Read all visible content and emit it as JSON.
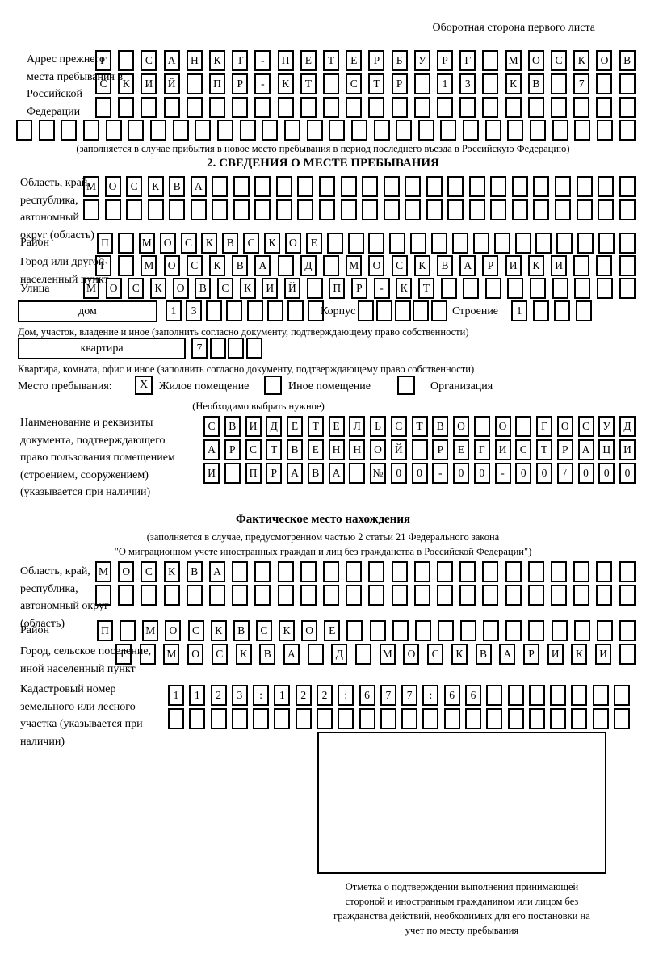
{
  "header": {
    "title": "Оборотная сторона первого листа"
  },
  "prev_address": {
    "label": "Адрес прежнего места пребывания в Российской Федерации",
    "row1": {
      "text": "Г САНКТ-ПЕТЕРБУРГ МОСКОВ",
      "count": 24
    },
    "row2": {
      "text": "СКИЙ ПР-КТ СТР 13 КВ 7",
      "count": 24
    },
    "row3": {
      "text": "",
      "count": 24
    },
    "row4": {
      "text": "",
      "count": 28
    },
    "note": "(заполняется в случае прибытия в новое место пребывания в период последнего въезда в Российскую Федерацию)"
  },
  "section2": {
    "title": "2. СВЕДЕНИЯ О МЕСТЕ ПРЕБЫВАНИЯ",
    "oblast": {
      "label": "Область, край, республика, автономный округ (область)",
      "row1": {
        "text": "МОСКВА",
        "count": 26
      },
      "row2": {
        "text": "",
        "count": 26
      }
    },
    "rayon": {
      "label": "Район",
      "row": {
        "text": "П МОСКВСКОЕ",
        "count": 26
      }
    },
    "gorod": {
      "label": "Город или другой населенный пункт",
      "row": {
        "text": "Г МОСКВА Д МОСКВАРИКИ",
        "count": 24
      }
    },
    "ulitsa": {
      "label": "Улица",
      "row": {
        "text": "МОСКОВСКИЙ ПР-КТ",
        "count": 25
      }
    },
    "dom": {
      "box_label": "дом",
      "cells": {
        "text": "13",
        "count": 8
      },
      "korpus_label": "Корпус",
      "korpus_cells": {
        "text": "",
        "count": 5
      },
      "stroenie_label": "Строение",
      "stroenie_cells": {
        "text": "1",
        "count": 4
      },
      "note": "Дом, участок, владение и иное (заполнить согласно документу, подтверждающему право собственности)"
    },
    "kvartira": {
      "box_label": "квартира",
      "cells": {
        "text": "7",
        "count": 4
      },
      "note": "Квартира, комната, офис и иное (заполнить согласно документу, подтверждающему право собственности)"
    },
    "mesto": {
      "label": "Место пребывания:",
      "options": [
        {
          "label": "Жилое помещение",
          "mark": "X",
          "checked": true
        },
        {
          "label": "Иное помещение",
          "mark": "",
          "checked": false
        },
        {
          "label": "Организация",
          "mark": "",
          "checked": false
        }
      ],
      "note": "(Необходимо выбрать нужное)"
    },
    "document": {
      "label": "Наименование и реквизиты документа, подтверждающего право пользования помещением (строением, сооружением) (указывается при наличии)",
      "row1": {
        "text": "СВИДЕТЕЛЬСТВО О ГОСУД",
        "count": 21
      },
      "row2": {
        "text": "АРСТВЕННОЙ РЕГИСТРАЦИ",
        "count": 21
      },
      "row3": {
        "text": "И ПРАВА №00-00-00/000",
        "count": 21
      }
    }
  },
  "fact": {
    "title": "Фактическое место нахождения",
    "note1": "(заполняется в случае, предусмотренном частью 2 статьи 21 Федерального закона",
    "note2": "\"О миграционном учете иностранных граждан и лиц без гражданства в Российской Федерации\")",
    "oblast": {
      "label": "Область, край, республика, автономный округ (область)",
      "row1": {
        "text": "МОСКВА",
        "count": 24
      },
      "row2": {
        "text": "",
        "count": 24
      }
    },
    "rayon": {
      "label": "Район",
      "row": {
        "text": "П МОСКВСКОЕ",
        "count": 24
      }
    },
    "gorod": {
      "label": "Город, сельское поселение, иной населенный пункт",
      "row": {
        "text": "Г МОСКВА Д МОСКВАРИКИ",
        "count": 22
      }
    },
    "kadastr": {
      "label": "Кадастровый номер земельного или лесного участка (указывается при наличии)",
      "row1": {
        "text": "1123:122:677:66",
        "count": 22
      },
      "row2": {
        "text": "",
        "count": 22
      }
    }
  },
  "stamp": {
    "note": "Отметка о подтверждении выполнения принимающей стороной и иностранным гражданином или лицом без гражданства действий, необходимых для его постановки на учет по месту пребывания"
  }
}
